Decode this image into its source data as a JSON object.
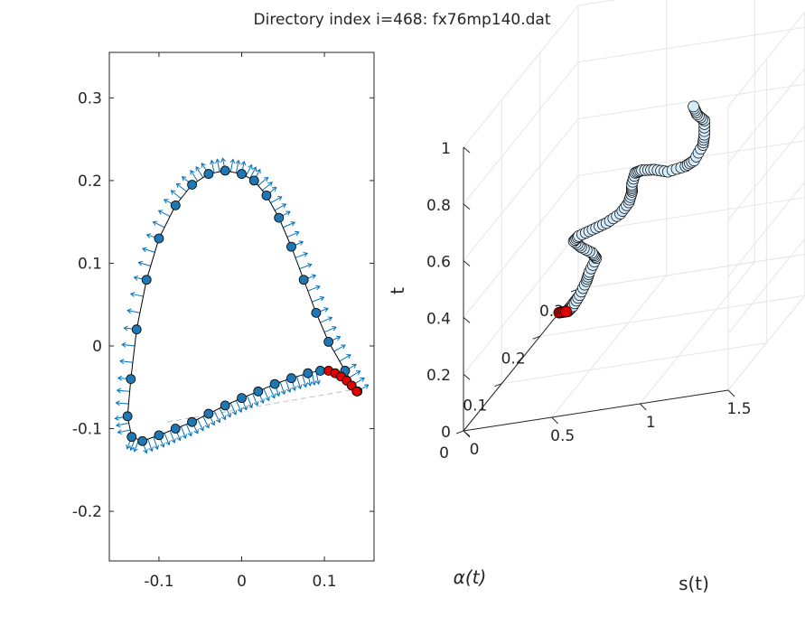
{
  "figure": {
    "title": "Directory index i=468: fx76mp140.dat"
  },
  "colors": {
    "marker_blue": "#1f77b4",
    "quiver_blue": "#0072bd",
    "highlight_red": "#e00000",
    "grid": "#e6e6e6",
    "axis": "#262626",
    "dashed_line": "#bfbfbf",
    "tube_fill": "#d6ecfa"
  },
  "chart_data": [
    {
      "type": "scatter",
      "subtype": "airfoil-outline-with-normal-vectors",
      "xlim": [
        -0.16,
        0.16
      ],
      "ylim": [
        -0.26,
        0.355
      ],
      "xticks": [
        -0.1,
        0,
        0.1
      ],
      "xtick_labels": [
        "-0.1",
        "0",
        "0.1"
      ],
      "yticks": [
        -0.2,
        -0.1,
        0,
        0.1,
        0.2,
        0.3
      ],
      "ytick_labels": [
        "-0.2",
        "-0.1",
        "0",
        "0.1",
        "0.2",
        "0.3"
      ],
      "grid": false,
      "series": [
        {
          "name": "outline",
          "color": "blue-circles-with-normals",
          "points": [
            [
              0.14,
              -0.055
            ],
            [
              0.125,
              -0.03
            ],
            [
              0.105,
              0.005
            ],
            [
              0.09,
              0.04
            ],
            [
              0.075,
              0.08
            ],
            [
              0.06,
              0.12
            ],
            [
              0.045,
              0.155
            ],
            [
              0.03,
              0.182
            ],
            [
              0.015,
              0.2
            ],
            [
              0.0,
              0.208
            ],
            [
              -0.02,
              0.212
            ],
            [
              -0.04,
              0.208
            ],
            [
              -0.06,
              0.195
            ],
            [
              -0.08,
              0.17
            ],
            [
              -0.1,
              0.13
            ],
            [
              -0.115,
              0.08
            ],
            [
              -0.127,
              0.02
            ],
            [
              -0.134,
              -0.04
            ],
            [
              -0.138,
              -0.085
            ],
            [
              -0.133,
              -0.11
            ],
            [
              -0.12,
              -0.115
            ],
            [
              -0.1,
              -0.108
            ],
            [
              -0.08,
              -0.1
            ],
            [
              -0.06,
              -0.092
            ],
            [
              -0.04,
              -0.082
            ],
            [
              -0.02,
              -0.072
            ],
            [
              0.0,
              -0.063
            ],
            [
              0.02,
              -0.055
            ],
            [
              0.04,
              -0.046
            ],
            [
              0.06,
              -0.039
            ],
            [
              0.08,
              -0.033
            ],
            [
              0.095,
              -0.03
            ]
          ]
        },
        {
          "name": "highlighted_tail",
          "color": "red",
          "points": [
            [
              0.105,
              -0.03
            ],
            [
              0.113,
              -0.033
            ],
            [
              0.12,
              -0.037
            ],
            [
              0.127,
              -0.042
            ],
            [
              0.133,
              -0.048
            ],
            [
              0.139,
              -0.055
            ]
          ]
        },
        {
          "name": "chord",
          "style": "dashed",
          "points": [
            [
              -0.09,
              -0.092
            ],
            [
              0.14,
              -0.052
            ]
          ]
        }
      ]
    },
    {
      "type": "scatter3d",
      "zlabel": "t",
      "xlabel": "s(t)",
      "ylabel": "α(t)",
      "s_ticks": [
        0,
        0.5,
        1,
        1.5
      ],
      "s_tick_labels": [
        "0",
        "0.5",
        "1",
        "1.5"
      ],
      "alpha_ticks": [
        0,
        0.1,
        0.2,
        0.3
      ],
      "alpha_tick_labels": [
        "0",
        "0.1",
        "0.2",
        "0.3"
      ],
      "t_ticks": [
        0,
        0.2,
        0.4,
        0.6,
        0.8,
        1
      ],
      "t_tick_labels": [
        "0",
        "0.2",
        "0.4",
        "0.6",
        "0.8",
        "1"
      ],
      "slim": [
        0,
        1.5
      ],
      "alphalim": [
        0,
        0.3
      ],
      "tlim": [
        0,
        1
      ],
      "grid": true,
      "series": [
        {
          "name": "curve",
          "color": "light-blue-open-circles",
          "points_s_alpha_t": [
            [
              0.05,
              0.25,
              0.0
            ],
            [
              0.1,
              0.24,
              0.03
            ],
            [
              0.16,
              0.23,
              0.08
            ],
            [
              0.22,
              0.22,
              0.14
            ],
            [
              0.28,
              0.2,
              0.2
            ],
            [
              0.34,
              0.19,
              0.26
            ],
            [
              0.36,
              0.17,
              0.31
            ],
            [
              0.32,
              0.16,
              0.35
            ],
            [
              0.3,
              0.15,
              0.39
            ],
            [
              0.35,
              0.14,
              0.42
            ],
            [
              0.45,
              0.13,
              0.45
            ],
            [
              0.55,
              0.12,
              0.48
            ],
            [
              0.65,
              0.11,
              0.52
            ],
            [
              0.72,
              0.1,
              0.57
            ],
            [
              0.76,
              0.09,
              0.62
            ],
            [
              0.78,
              0.08,
              0.66
            ],
            [
              0.8,
              0.08,
              0.7
            ],
            [
              0.86,
              0.07,
              0.72
            ],
            [
              0.95,
              0.06,
              0.73
            ],
            [
              1.05,
              0.05,
              0.73
            ],
            [
              1.15,
              0.05,
              0.74
            ],
            [
              1.22,
              0.04,
              0.77
            ],
            [
              1.27,
              0.04,
              0.82
            ],
            [
              1.3,
              0.03,
              0.87
            ],
            [
              1.3,
              0.03,
              0.92
            ],
            [
              1.28,
              0.02,
              0.96
            ],
            [
              1.26,
              0.02,
              0.99
            ]
          ]
        },
        {
          "name": "highlighted_start",
          "color": "red",
          "points_s_alpha_t": [
            [
              0.0,
              0.25,
              0.0
            ],
            [
              0.01,
              0.25,
              0.0
            ],
            [
              0.02,
              0.25,
              0.0
            ],
            [
              0.03,
              0.25,
              0.0
            ],
            [
              0.04,
              0.25,
              0.0
            ]
          ]
        }
      ]
    }
  ]
}
